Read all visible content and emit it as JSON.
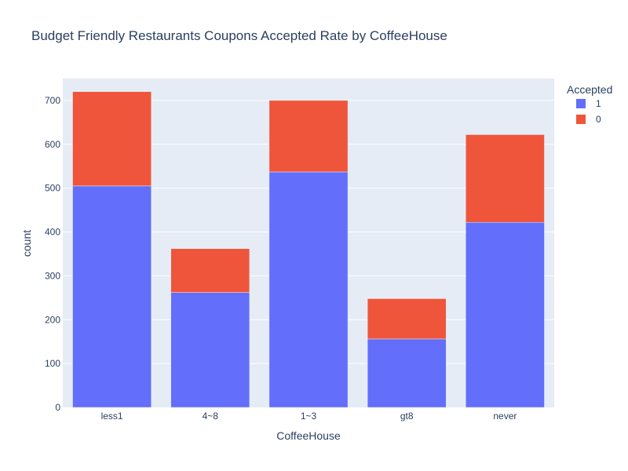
{
  "chart_data": {
    "type": "bar",
    "barmode": "stack",
    "title": "Budget Friendly Restaurants Coupons Accepted Rate by CoffeeHouse",
    "xlabel": "CoffeeHouse",
    "ylabel": "count",
    "categories": [
      "less1",
      "4~8",
      "1~3",
      "gt8",
      "never"
    ],
    "ylim": [
      0,
      750
    ],
    "yticks": [
      0,
      100,
      200,
      300,
      400,
      500,
      600,
      700
    ],
    "grid": true,
    "legend": {
      "title": "Accepted",
      "placement": "top-right"
    },
    "series": [
      {
        "name": "1",
        "color": "#636efa",
        "values": [
          505,
          262,
          537,
          156,
          422
        ]
      },
      {
        "name": "0",
        "color": "#ef553b",
        "values": [
          215,
          100,
          163,
          92,
          200
        ]
      }
    ],
    "colors": {
      "plot_background": "#e5ecf6",
      "grid": "#ffffff",
      "text": "#2a3f5f"
    }
  }
}
